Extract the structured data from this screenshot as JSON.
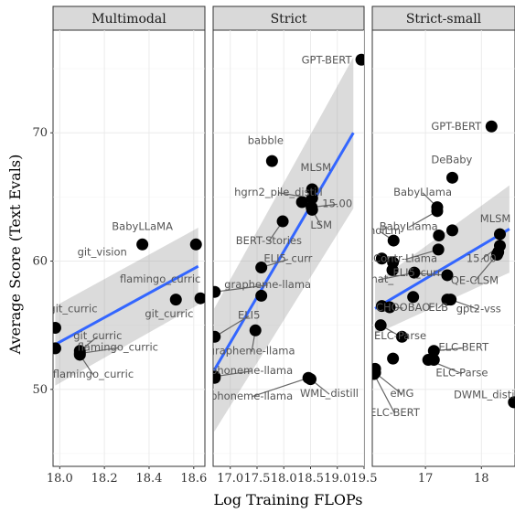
{
  "chart_data": {
    "type": "scatter",
    "xlabel": "Log Training FLOPs",
    "ylabel": "Average Score (Text Evals)",
    "ylim": [
      44,
      78
    ],
    "y_ticks": [
      50,
      60,
      70
    ],
    "grid": true,
    "legend": "none",
    "panels": [
      {
        "title": "Multimodal",
        "xlim": [
          17.97,
          18.65
        ],
        "x_ticks": [
          18.0,
          18.2,
          18.4,
          18.6
        ],
        "x_tick_labels": [
          "18.0",
          "18.2",
          "18.4",
          "18.6"
        ],
        "fit": {
          "x": [
            17.98,
            18.62
          ],
          "y": [
            53.5,
            59.6
          ],
          "band_lo": [
            50.3,
            56.6
          ],
          "band_hi": [
            56.5,
            62.6
          ]
        },
        "points": [
          {
            "label": "git_curric",
            "x": 17.98,
            "y": 54.8,
            "lx": 18.06,
            "ly": 56.3,
            "leader": false
          },
          {
            "label": "",
            "x": 17.98,
            "y": 53.2
          },
          {
            "label": "git_curric",
            "x": 18.09,
            "y": 53.0,
            "lx": 18.17,
            "ly": 54.2,
            "leader": true
          },
          {
            "label": "flamingo_curric",
            "x": 18.09,
            "y": 52.8,
            "lx": 18.26,
            "ly": 53.3,
            "leader": true
          },
          {
            "label": "flamingo_curric",
            "x": 18.09,
            "y": 52.7,
            "lx": 18.15,
            "ly": 51.2,
            "leader": true
          },
          {
            "label": "BabyLLaMA",
            "x": 18.37,
            "y": 61.3,
            "lx": 18.37,
            "ly": 62.7,
            "leader": false
          },
          {
            "label": "git_vision",
            "x": 18.61,
            "y": 61.3,
            "lx": 18.19,
            "ly": 60.7,
            "leader": false
          },
          {
            "label": "flamingo_curric",
            "x": 18.52,
            "y": 57.0,
            "lx": 18.45,
            "ly": 58.6,
            "leader": false
          },
          {
            "label": "git_curric",
            "x": 18.63,
            "y": 57.1,
            "lx": 18.49,
            "ly": 55.9,
            "leader": false
          }
        ]
      },
      {
        "title": "Strict",
        "xlim": [
          16.68,
          19.5
        ],
        "x_ticks": [
          17.0,
          17.5,
          18.0,
          18.5,
          19.0,
          19.5
        ],
        "x_tick_labels": [
          "17.0",
          "17.5",
          "18.0",
          "18.5",
          "19.0",
          "19.5"
        ],
        "fit": {
          "x": [
            16.7,
            19.3
          ],
          "y": [
            51.5,
            70.0
          ],
          "band_lo": [
            46.7,
            64.1
          ],
          "band_hi": [
            56.3,
            75.9
          ]
        },
        "points": [
          {
            "label": "GPT-BERT",
            "x": 19.45,
            "y": 75.7,
            "lx": 18.8,
            "ly": 75.7,
            "leader": false
          },
          {
            "label": "babble",
            "x": 17.78,
            "y": 67.8,
            "lx": 17.66,
            "ly": 69.4,
            "leader": false
          },
          {
            "label": "MLSM",
            "x": 18.53,
            "y": 65.6,
            "lx": 18.6,
            "ly": 67.3,
            "leader": false
          },
          {
            "label": "hgrn2_pile_distill",
            "x": 18.53,
            "y": 64.9,
            "lx": 17.9,
            "ly": 65.4,
            "leader": true
          },
          {
            "label": "15.00",
            "x": 18.52,
            "y": 64.2,
            "lx": 19.0,
            "ly": 64.5,
            "leader": true
          },
          {
            "label": "",
            "x": 18.34,
            "y": 64.6
          },
          {
            "label": "LSM",
            "x": 18.53,
            "y": 64.0,
            "lx": 18.7,
            "ly": 62.8,
            "leader": true
          },
          {
            "label": "BERT-Stories",
            "x": 17.98,
            "y": 63.1,
            "lx": 17.72,
            "ly": 61.6,
            "leader": true
          },
          {
            "label": "ELI5_curr",
            "x": 17.58,
            "y": 59.5,
            "lx": 18.08,
            "ly": 60.2,
            "leader": true
          },
          {
            "label": "grapheme-llama",
            "x": 16.71,
            "y": 57.6,
            "lx": 17.7,
            "ly": 58.2,
            "leader": true
          },
          {
            "label": "",
            "x": 17.58,
            "y": 57.3
          },
          {
            "label": "ELI5",
            "x": 16.71,
            "y": 54.1,
            "lx": 17.35,
            "ly": 55.8,
            "leader": true
          },
          {
            "label": "grapheme-llama",
            "x": 17.47,
            "y": 54.6,
            "lx": 17.4,
            "ly": 53.0,
            "leader": true
          },
          {
            "label": "phoneme-llama",
            "x": 16.71,
            "y": 51.0,
            "lx": 17.4,
            "ly": 51.5,
            "leader": true
          },
          {
            "label": "",
            "x": 16.71,
            "y": 50.9
          },
          {
            "label": "phoneme-llama",
            "x": 18.46,
            "y": 50.9,
            "lx": 17.4,
            "ly": 49.5,
            "leader": true
          },
          {
            "label": "WML_distill",
            "x": 18.5,
            "y": 50.8,
            "lx": 18.85,
            "ly": 49.7,
            "leader": true
          }
        ]
      },
      {
        "title": "Strict-small",
        "xlim": [
          16.05,
          18.6
        ],
        "x_ticks": [
          17.0,
          18.0
        ],
        "x_tick_labels": [
          "17",
          "18"
        ],
        "fit": {
          "x": [
            16.1,
            18.5
          ],
          "y": [
            56.3,
            62.5
          ],
          "band_lo": [
            54.3,
            59.1
          ],
          "band_hi": [
            58.3,
            65.9
          ]
        },
        "points": [
          {
            "label": "GPT-BERT",
            "x": 18.18,
            "y": 70.5,
            "lx": 17.55,
            "ly": 70.5,
            "leader": false
          },
          {
            "label": "DeBaby",
            "x": 17.48,
            "y": 66.5,
            "lx": 17.47,
            "ly": 67.9,
            "leader": false
          },
          {
            "label": "BabyLlama",
            "x": 17.21,
            "y": 64.2,
            "lx": 16.95,
            "ly": 65.4,
            "leader": true
          },
          {
            "label": "BabyLlama",
            "x": 17.21,
            "y": 63.9,
            "lx": 16.7,
            "ly": 62.7,
            "leader": true
          },
          {
            "label": "SmolLm",
            "x": 16.43,
            "y": 61.6,
            "lx": 16.18,
            "ly": 62.4,
            "leader": true
          },
          {
            "label": "MLSM",
            "x": 18.33,
            "y": 62.1,
            "lx": 18.25,
            "ly": 63.3,
            "leader": false
          },
          {
            "label": "Contr-Llama",
            "x": 17.23,
            "y": 60.9,
            "lx": 16.64,
            "ly": 60.2,
            "leader": true
          },
          {
            "label": "15.00",
            "x": 18.33,
            "y": 61.2,
            "lx": 18.0,
            "ly": 60.2,
            "leader": true
          },
          {
            "label": "",
            "x": 17.24,
            "y": 62.0
          },
          {
            "label": "",
            "x": 17.48,
            "y": 62.4
          },
          {
            "label": "",
            "x": 16.22,
            "y": 60.2
          },
          {
            "label": "",
            "x": 16.42,
            "y": 59.9
          },
          {
            "label": "",
            "x": 18.3,
            "y": 60.7
          },
          {
            "label": "ELI5_curr",
            "x": 17.39,
            "y": 58.9,
            "lx": 16.85,
            "ly": 59.1,
            "leader": true
          },
          {
            "label": "",
            "x": 16.41,
            "y": 59.3
          },
          {
            "label": "what_",
            "x": 16.8,
            "y": 59.1,
            "lx": 16.15,
            "ly": 58.6,
            "leader": true
          },
          {
            "label": "QE-CLSM",
            "x": 18.28,
            "y": 60.5,
            "lx": 17.88,
            "ly": 58.5,
            "leader": true
          },
          {
            "label": "CHOOBAO",
            "x": 16.22,
            "y": 56.5,
            "lx": 16.6,
            "ly": 56.4,
            "leader": true
          },
          {
            "label": "ELB",
            "x": 17.39,
            "y": 57.0,
            "lx": 17.23,
            "ly": 56.4,
            "leader": true
          },
          {
            "label": "",
            "x": 16.78,
            "y": 57.2
          },
          {
            "label": "",
            "x": 16.36,
            "y": 56.4
          },
          {
            "label": "gpt2-vss",
            "x": 17.45,
            "y": 57.0,
            "lx": 17.95,
            "ly": 56.3,
            "leader": true
          },
          {
            "label": "ELC-Parse",
            "x": 16.2,
            "y": 55.0,
            "lx": 16.55,
            "ly": 54.2,
            "leader": true
          },
          {
            "label": "",
            "x": 16.58,
            "y": 54.1
          },
          {
            "label": "ELC-BERT",
            "x": 17.15,
            "y": 53.0,
            "lx": 17.68,
            "ly": 53.3,
            "leader": true
          },
          {
            "label": "",
            "x": 17.15,
            "y": 52.3
          },
          {
            "label": "ELC-Parse",
            "x": 17.05,
            "y": 52.3,
            "lx": 17.65,
            "ly": 51.3,
            "leader": true
          },
          {
            "label": "",
            "x": 16.42,
            "y": 52.4
          },
          {
            "label": "",
            "x": 16.1,
            "y": 51.6
          },
          {
            "label": "",
            "x": 16.08,
            "y": 51.3
          },
          {
            "label": "eMG",
            "x": 16.1,
            "y": 51.3,
            "lx": 16.58,
            "ly": 49.7,
            "leader": true
          },
          {
            "label": "ELC-BERT",
            "x": 16.08,
            "y": 51.2,
            "lx": 16.45,
            "ly": 48.2,
            "leader": true
          },
          {
            "label": "DWML_distill",
            "x": 18.58,
            "y": 49.0,
            "lx": 18.1,
            "ly": 49.6,
            "leader": false
          }
        ]
      }
    ]
  }
}
